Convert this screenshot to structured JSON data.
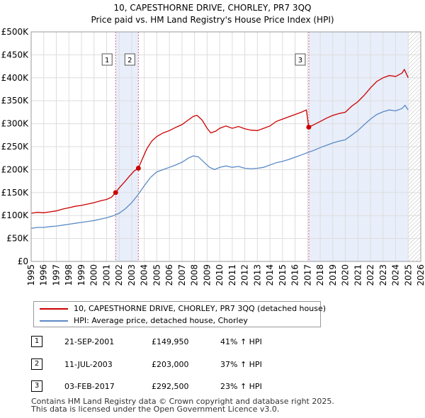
{
  "title_line1": "10, CAPESTHORNE DRIVE, CHORLEY, PR7 3QQ",
  "title_line2": "Price paid vs. HM Land Registry's House Price Index (HPI)",
  "chart_data": {
    "type": "line",
    "xlim": [
      1995,
      2026
    ],
    "ylim": [
      0,
      500000
    ],
    "x_ticks": [
      1995,
      1996,
      1997,
      1998,
      1999,
      2000,
      2001,
      2002,
      2003,
      2004,
      2005,
      2006,
      2007,
      2008,
      2009,
      2010,
      2011,
      2012,
      2013,
      2014,
      2015,
      2016,
      2017,
      2018,
      2019,
      2020,
      2021,
      2022,
      2023,
      2024,
      2025,
      2026
    ],
    "x_tick_labels": [
      "1995",
      "1996",
      "1997",
      "1998",
      "1999",
      "2000",
      "2001",
      "2002",
      "2003",
      "2004",
      "2005",
      "2006",
      "2007",
      "2008",
      "2009",
      "2010",
      "2011",
      "2012",
      "2013",
      "2014",
      "2015",
      "2016",
      "2017",
      "2018",
      "2019",
      "2020",
      "2021",
      "2022",
      "2023",
      "2024",
      "2025",
      "2026"
    ],
    "y_ticks": [
      0,
      50000,
      100000,
      150000,
      200000,
      250000,
      300000,
      350000,
      400000,
      450000,
      500000
    ],
    "y_tick_labels": [
      "£0",
      "£50K",
      "£100K",
      "£150K",
      "£200K",
      "£250K",
      "£300K",
      "£350K",
      "£400K",
      "£450K",
      "£500K"
    ],
    "grid": true,
    "shaded_ranges": [
      [
        2001.72,
        2003.53
      ],
      [
        2017.09,
        2025.0
      ]
    ],
    "future_hatch_from": 2025.0,
    "series": [
      {
        "name": "10, CAPESTHORNE DRIVE, CHORLEY, PR7 3QQ (detached house)",
        "color": "#cc0000",
        "points": [
          [
            1995.0,
            105000
          ],
          [
            1995.5,
            107000
          ],
          [
            1996.0,
            106000
          ],
          [
            1996.5,
            108000
          ],
          [
            1997.0,
            110000
          ],
          [
            1997.5,
            114000
          ],
          [
            1998.0,
            117000
          ],
          [
            1998.5,
            120000
          ],
          [
            1999.0,
            122000
          ],
          [
            1999.5,
            125000
          ],
          [
            2000.0,
            128000
          ],
          [
            2000.5,
            132000
          ],
          [
            2001.0,
            135000
          ],
          [
            2001.4,
            140000
          ],
          [
            2001.72,
            149950
          ],
          [
            2002.0,
            160000
          ],
          [
            2002.4,
            172000
          ],
          [
            2002.8,
            185000
          ],
          [
            2003.2,
            197000
          ],
          [
            2003.53,
            203000
          ],
          [
            2003.8,
            220000
          ],
          [
            2004.2,
            245000
          ],
          [
            2004.6,
            262000
          ],
          [
            2005.0,
            272000
          ],
          [
            2005.5,
            280000
          ],
          [
            2006.0,
            285000
          ],
          [
            2006.5,
            292000
          ],
          [
            2007.0,
            298000
          ],
          [
            2007.5,
            308000
          ],
          [
            2007.9,
            316000
          ],
          [
            2008.2,
            318000
          ],
          [
            2008.6,
            308000
          ],
          [
            2009.0,
            290000
          ],
          [
            2009.3,
            280000
          ],
          [
            2009.7,
            284000
          ],
          [
            2010.0,
            290000
          ],
          [
            2010.5,
            295000
          ],
          [
            2011.0,
            290000
          ],
          [
            2011.5,
            294000
          ],
          [
            2012.0,
            289000
          ],
          [
            2012.5,
            286000
          ],
          [
            2013.0,
            285000
          ],
          [
            2013.5,
            290000
          ],
          [
            2014.0,
            295000
          ],
          [
            2014.5,
            305000
          ],
          [
            2015.0,
            310000
          ],
          [
            2015.5,
            315000
          ],
          [
            2016.0,
            320000
          ],
          [
            2016.5,
            325000
          ],
          [
            2016.9,
            330000
          ],
          [
            2017.09,
            292500
          ],
          [
            2017.5,
            298000
          ],
          [
            2018.0,
            305000
          ],
          [
            2018.5,
            312000
          ],
          [
            2019.0,
            318000
          ],
          [
            2019.5,
            322000
          ],
          [
            2020.0,
            325000
          ],
          [
            2020.5,
            338000
          ],
          [
            2021.0,
            348000
          ],
          [
            2021.5,
            362000
          ],
          [
            2022.0,
            378000
          ],
          [
            2022.5,
            392000
          ],
          [
            2023.0,
            400000
          ],
          [
            2023.5,
            405000
          ],
          [
            2024.0,
            403000
          ],
          [
            2024.5,
            410000
          ],
          [
            2024.7,
            418000
          ],
          [
            2025.0,
            400000
          ]
        ]
      },
      {
        "name": "HPI: Average price, detached house, Chorley",
        "color": "#5b8ac6",
        "points": [
          [
            1995.0,
            72000
          ],
          [
            1995.5,
            74000
          ],
          [
            1996.0,
            74000
          ],
          [
            1996.5,
            76000
          ],
          [
            1997.0,
            77000
          ],
          [
            1997.5,
            79000
          ],
          [
            1998.0,
            81000
          ],
          [
            1998.5,
            83000
          ],
          [
            1999.0,
            85000
          ],
          [
            1999.5,
            87000
          ],
          [
            2000.0,
            89000
          ],
          [
            2000.5,
            92000
          ],
          [
            2001.0,
            95000
          ],
          [
            2001.5,
            99000
          ],
          [
            2002.0,
            105000
          ],
          [
            2002.5,
            115000
          ],
          [
            2003.0,
            128000
          ],
          [
            2003.5,
            145000
          ],
          [
            2004.0,
            165000
          ],
          [
            2004.5,
            183000
          ],
          [
            2005.0,
            195000
          ],
          [
            2005.5,
            200000
          ],
          [
            2006.0,
            205000
          ],
          [
            2006.5,
            210000
          ],
          [
            2007.0,
            216000
          ],
          [
            2007.5,
            225000
          ],
          [
            2007.9,
            230000
          ],
          [
            2008.3,
            228000
          ],
          [
            2008.8,
            215000
          ],
          [
            2009.2,
            205000
          ],
          [
            2009.6,
            200000
          ],
          [
            2010.0,
            205000
          ],
          [
            2010.5,
            208000
          ],
          [
            2011.0,
            205000
          ],
          [
            2011.5,
            207000
          ],
          [
            2012.0,
            203000
          ],
          [
            2012.5,
            202000
          ],
          [
            2013.0,
            203000
          ],
          [
            2013.5,
            205000
          ],
          [
            2014.0,
            210000
          ],
          [
            2014.5,
            215000
          ],
          [
            2015.0,
            218000
          ],
          [
            2015.5,
            222000
          ],
          [
            2016.0,
            227000
          ],
          [
            2016.5,
            232000
          ],
          [
            2017.0,
            237000
          ],
          [
            2017.5,
            242000
          ],
          [
            2018.0,
            248000
          ],
          [
            2018.5,
            253000
          ],
          [
            2019.0,
            258000
          ],
          [
            2019.5,
            262000
          ],
          [
            2020.0,
            265000
          ],
          [
            2020.5,
            275000
          ],
          [
            2021.0,
            285000
          ],
          [
            2021.5,
            298000
          ],
          [
            2022.0,
            310000
          ],
          [
            2022.5,
            320000
          ],
          [
            2023.0,
            326000
          ],
          [
            2023.5,
            330000
          ],
          [
            2024.0,
            328000
          ],
          [
            2024.5,
            333000
          ],
          [
            2024.75,
            340000
          ],
          [
            2025.0,
            330000
          ]
        ]
      }
    ],
    "sales": [
      {
        "num": "1",
        "x": 2001.72,
        "value": 149950
      },
      {
        "num": "2",
        "x": 2003.53,
        "value": 203000
      },
      {
        "num": "3",
        "x": 2017.09,
        "value": 292500
      }
    ]
  },
  "legend": {
    "property": "10, CAPESTHORNE DRIVE, CHORLEY, PR7 3QQ (detached house)",
    "hpi": "HPI: Average price, detached house, Chorley",
    "property_color": "#cc0000",
    "hpi_color": "#5b8ac6"
  },
  "sales_table": [
    {
      "num": "1",
      "date": "21-SEP-2001",
      "price": "£149,950",
      "hpi": "41% ↑ HPI"
    },
    {
      "num": "2",
      "date": "11-JUL-2003",
      "price": "£203,000",
      "hpi": "37% ↑ HPI"
    },
    {
      "num": "3",
      "date": "03-FEB-2017",
      "price": "£292,500",
      "hpi": "23% ↑ HPI"
    }
  ],
  "footer_line1": "Contains HM Land Registry data © Crown copyright and database right 2025.",
  "footer_line2": "This data is licensed under the Open Government Licence v3.0."
}
